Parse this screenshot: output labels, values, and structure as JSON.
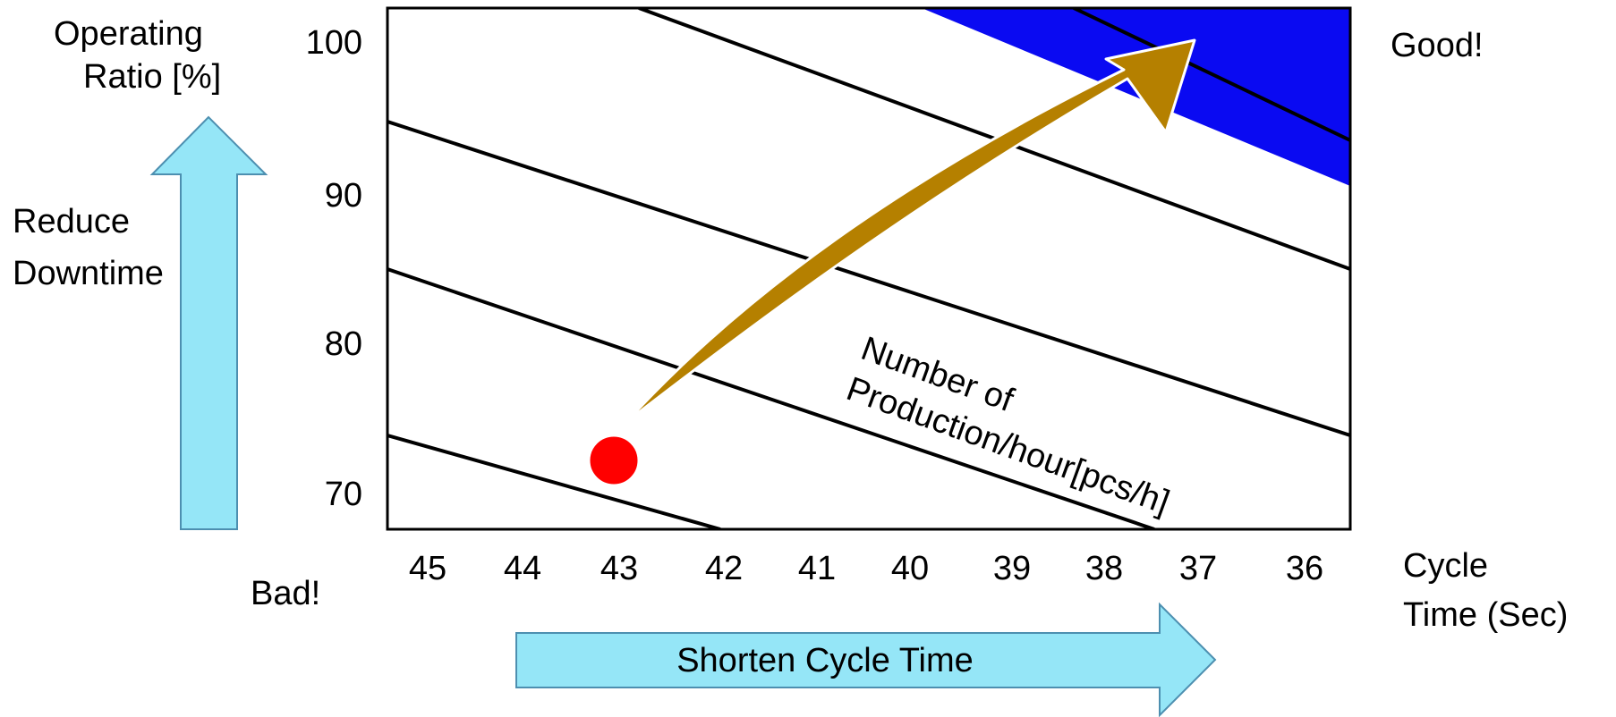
{
  "y_axis": {
    "title_line1": "Operating",
    "title_line2": "Ratio [%]",
    "ticks": [
      "100",
      "90",
      "80",
      "70"
    ]
  },
  "x_axis": {
    "ticks": [
      "45",
      "44",
      "43",
      "42",
      "41",
      "40",
      "39",
      "38",
      "37",
      "36"
    ],
    "title_line1": "Cycle",
    "title_line2": "Time (Sec)"
  },
  "left_arrow": {
    "label_line1": "Reduce",
    "label_line2": "Downtime",
    "color": "#95e6f7"
  },
  "bottom_arrow": {
    "label": "Shorten Cycle Time",
    "color": "#95e6f7"
  },
  "quality": {
    "good": "Good!",
    "bad": "Bad!"
  },
  "iso_lines_label": {
    "line1": "Number of",
    "line2": "Production/hour[pcs/h]"
  },
  "colors": {
    "target_zone": "#0a0af2",
    "current_point": "#ff0000",
    "improvement_arrow": "#b58000"
  }
}
